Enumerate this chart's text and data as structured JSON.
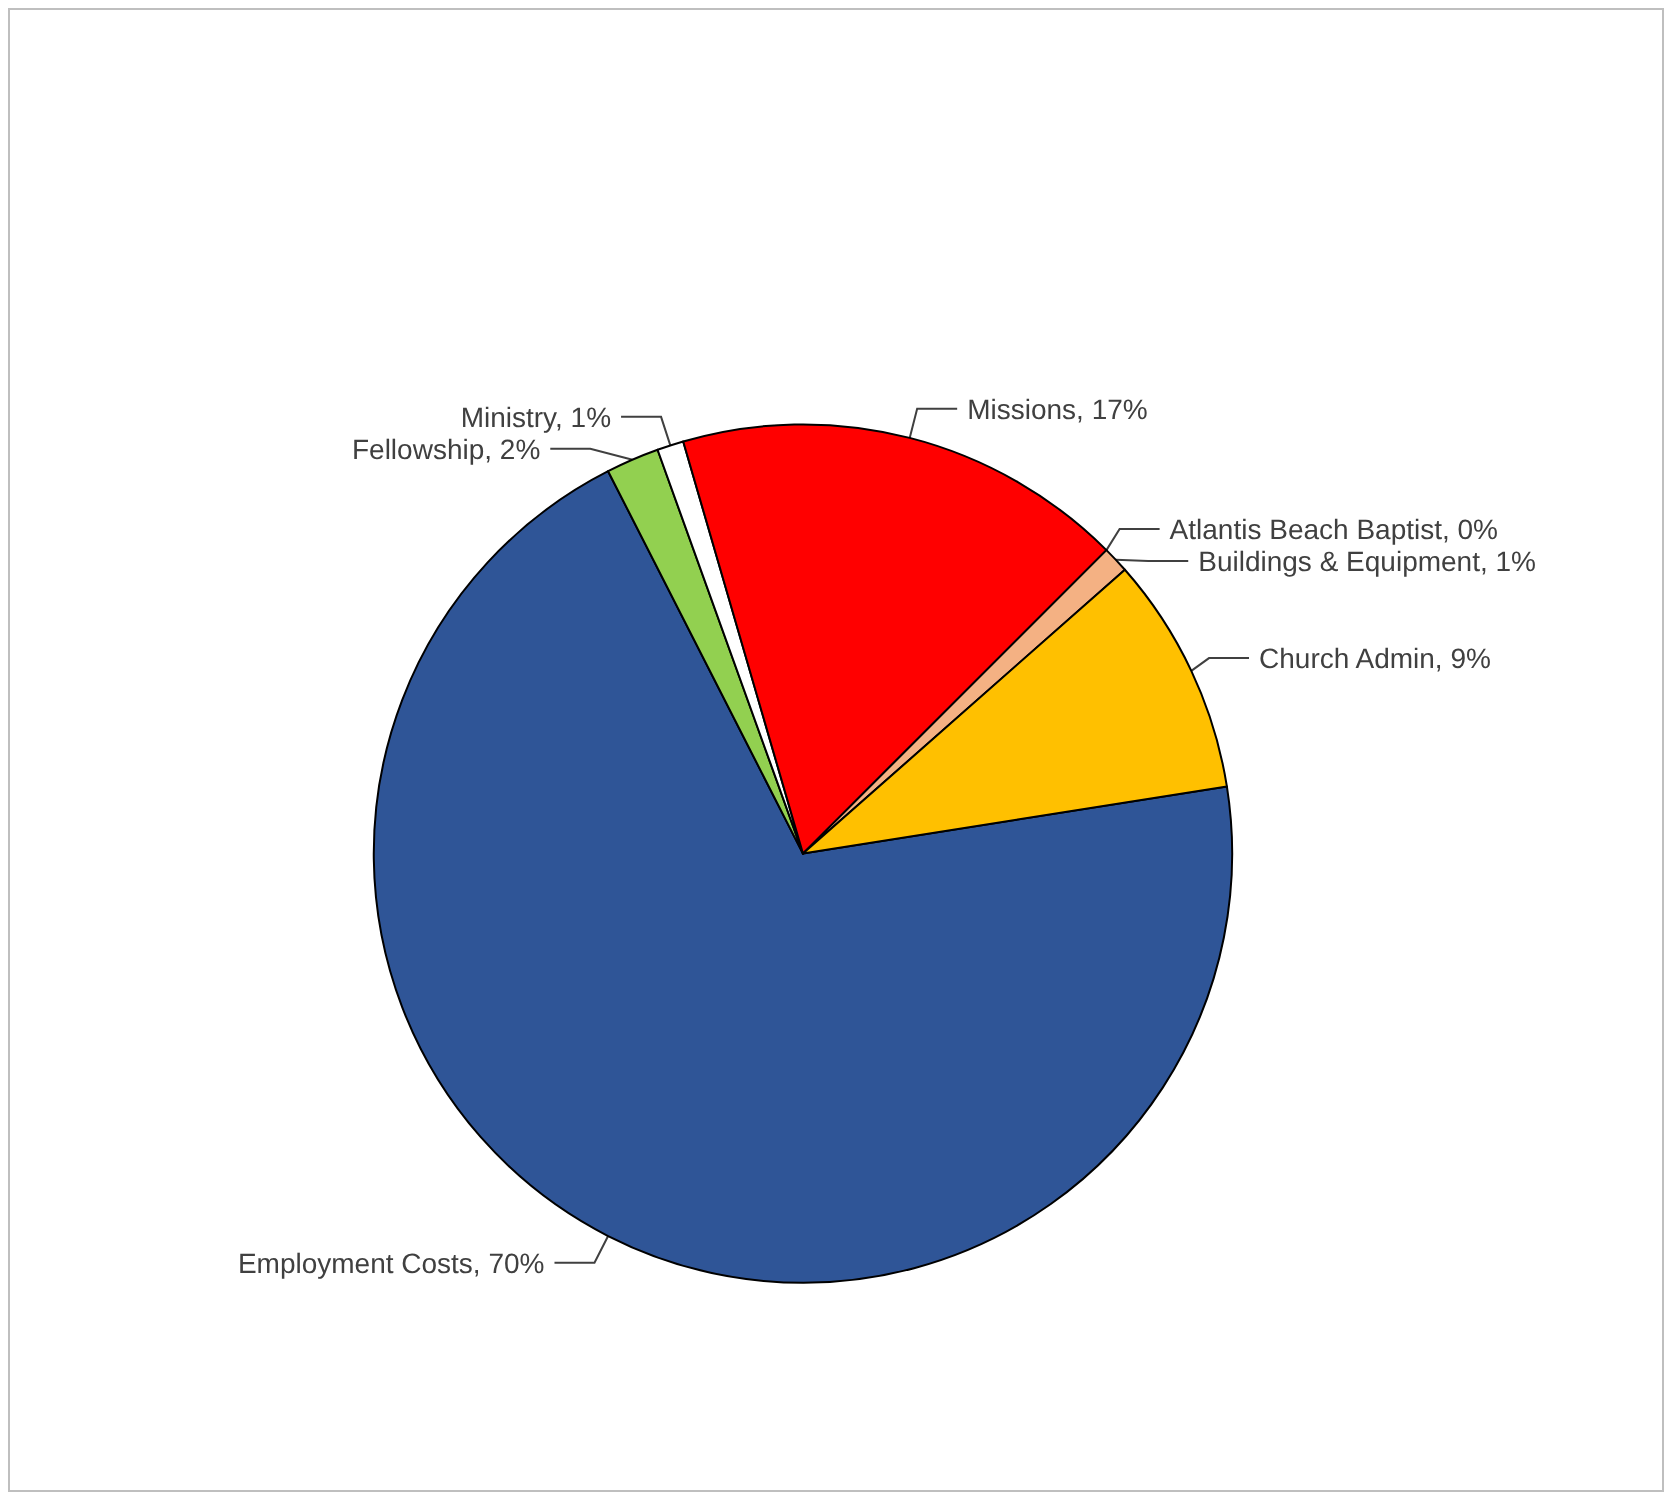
{
  "chart_data": {
    "type": "pie",
    "categories": [
      "Employment Costs",
      "Fellowship",
      "Ministry",
      "Missions",
      "Atlantis Beach Baptist",
      "Buildings & Equipment",
      "Church Admin"
    ],
    "values": [
      70,
      2,
      1,
      17,
      0,
      1,
      9
    ],
    "value_labels": [
      "70%",
      "2%",
      "1%",
      "17%",
      "0%",
      "1%",
      "9%"
    ],
    "colors": [
      "#2f5597",
      "#92d050",
      "#ffffff",
      "#ff0000",
      "#ffffff",
      "#f4b183",
      "#ffc000"
    ]
  }
}
